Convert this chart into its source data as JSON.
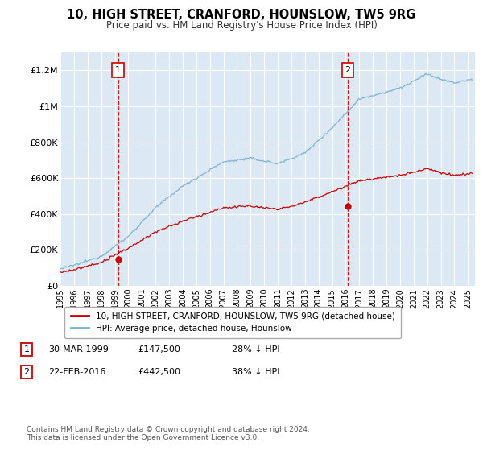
{
  "title": "10, HIGH STREET, CRANFORD, HOUNSLOW, TW5 9RG",
  "subtitle": "Price paid vs. HM Land Registry's House Price Index (HPI)",
  "background_color": "#dce9f5",
  "plot_bg_color": "#dce9f5",
  "hpi_color": "#7ab3d4",
  "price_color": "#cc0000",
  "marker_color": "#cc0000",
  "annotation_box_color": "#cc0000",
  "ylim": [
    0,
    1300000
  ],
  "yticks": [
    0,
    200000,
    400000,
    600000,
    800000,
    1000000,
    1200000
  ],
  "ytick_labels": [
    "£0",
    "£200K",
    "£400K",
    "£600K",
    "£800K",
    "£1M",
    "£1.2M"
  ],
  "sale1_date": "30-MAR-1999",
  "sale1_price": 147500,
  "sale1_hpi_pct": "28% ↓ HPI",
  "sale1_year": 1999.25,
  "sale2_date": "22-FEB-2016",
  "sale2_price": 442500,
  "sale2_hpi_pct": "38% ↓ HPI",
  "sale2_year": 2016.15,
  "legend_line1": "10, HIGH STREET, CRANFORD, HOUNSLOW, TW5 9RG (detached house)",
  "legend_line2": "HPI: Average price, detached house, Hounslow",
  "footer1": "Contains HM Land Registry data © Crown copyright and database right 2024.",
  "footer2": "This data is licensed under the Open Government Licence v3.0.",
  "xmin": 1995.0,
  "xmax": 2025.5,
  "grid_color": "#ffffff",
  "fig_width": 6.0,
  "fig_height": 5.6
}
